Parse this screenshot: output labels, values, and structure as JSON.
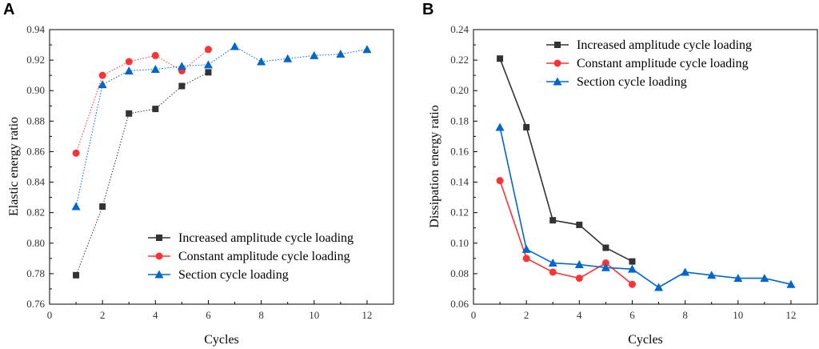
{
  "colors": {
    "series1": "#333333",
    "series2": "#ff3333",
    "series3": "#0066cc"
  },
  "chart_data": [
    {
      "panel": "A",
      "type": "line",
      "line_style": "dotted",
      "xlabel": "Cycles",
      "ylabel": "Elastic energy ratio",
      "xlim": [
        0,
        13
      ],
      "ylim": [
        0.76,
        0.94
      ],
      "xticks": [
        0,
        2,
        4,
        6,
        8,
        10,
        12
      ],
      "yticks": [
        "0.76",
        "0.78",
        "0.80",
        "0.82",
        "0.84",
        "0.86",
        "0.88",
        "0.90",
        "0.92",
        "0.94"
      ],
      "legend_position": "bottom-right",
      "series": [
        {
          "name": "Increased amplitude cycle loading",
          "marker": "square",
          "x": [
            1,
            2,
            3,
            4,
            5,
            6
          ],
          "values": [
            0.779,
            0.824,
            0.885,
            0.888,
            0.903,
            0.912
          ]
        },
        {
          "name": "Constant amplitude cycle loading",
          "marker": "circle",
          "x": [
            1,
            2,
            3,
            4,
            5,
            6
          ],
          "values": [
            0.859,
            0.91,
            0.919,
            0.923,
            0.913,
            0.927
          ]
        },
        {
          "name": "Section cycle loading",
          "marker": "triangle",
          "x": [
            1,
            2,
            3,
            4,
            5,
            6,
            7,
            8,
            9,
            10,
            11,
            12
          ],
          "values": [
            0.824,
            0.904,
            0.913,
            0.914,
            0.916,
            0.917,
            0.929,
            0.919,
            0.921,
            0.923,
            0.924,
            0.927
          ]
        }
      ]
    },
    {
      "panel": "B",
      "type": "line",
      "line_style": "solid",
      "xlabel": "Cycles",
      "ylabel": "Dissipation energy ratio",
      "xlim": [
        0,
        13
      ],
      "ylim": [
        0.06,
        0.24
      ],
      "xticks": [
        0,
        2,
        4,
        6,
        8,
        10,
        12
      ],
      "yticks": [
        "0.06",
        "0.08",
        "0.10",
        "0.12",
        "0.14",
        "0.16",
        "0.18",
        "0.20",
        "0.22",
        "0.24"
      ],
      "legend_position": "top-right",
      "series": [
        {
          "name": "Increased amplitude cycle loading",
          "marker": "square",
          "x": [
            1,
            2,
            3,
            4,
            5,
            6
          ],
          "values": [
            0.221,
            0.176,
            0.115,
            0.112,
            0.097,
            0.088
          ]
        },
        {
          "name": "Constant amplitude cycle loading",
          "marker": "circle",
          "x": [
            1,
            2,
            3,
            4,
            5,
            6
          ],
          "values": [
            0.141,
            0.09,
            0.081,
            0.077,
            0.087,
            0.073
          ]
        },
        {
          "name": "Section cycle loading",
          "marker": "triangle",
          "x": [
            1,
            2,
            3,
            4,
            5,
            6,
            7,
            8,
            9,
            10,
            11,
            12
          ],
          "values": [
            0.176,
            0.096,
            0.087,
            0.086,
            0.084,
            0.083,
            0.071,
            0.081,
            0.079,
            0.077,
            0.077,
            0.073
          ]
        }
      ]
    }
  ]
}
